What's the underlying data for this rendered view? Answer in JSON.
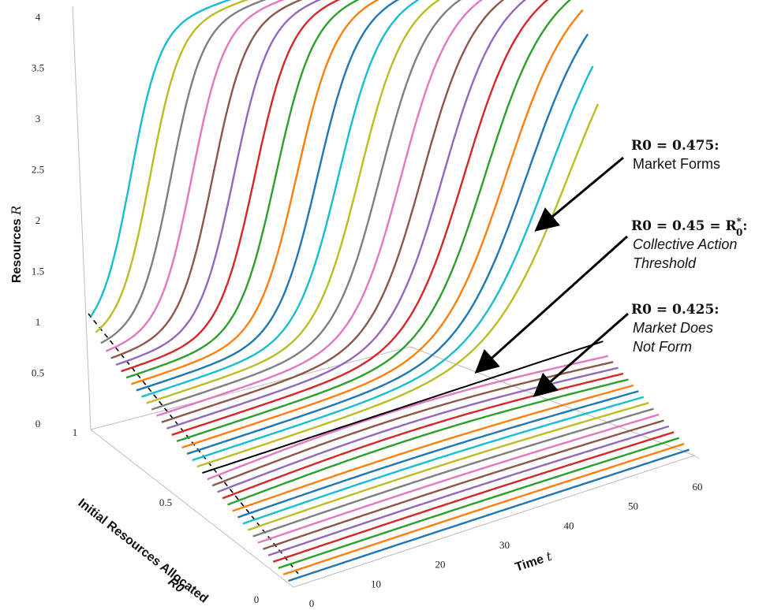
{
  "chart_data": {
    "type": "line",
    "projection": "3d",
    "axes": {
      "x": {
        "label": "Time",
        "symbol": "t",
        "range": [
          0,
          60
        ],
        "ticks": [
          "0",
          "10",
          "20",
          "30",
          "40",
          "50",
          "60"
        ]
      },
      "y": {
        "label": "Initial Resources Allocated",
        "symbol": "R0",
        "range": [
          0,
          1
        ],
        "ticks": [
          "0",
          "0.5",
          "1"
        ]
      },
      "z": {
        "label": "Resources",
        "symbol": "R",
        "range": [
          0,
          4
        ],
        "ticks": [
          "0",
          "0.5",
          "1",
          "1.5",
          "2",
          "2.5",
          "3",
          "3.5",
          "4"
        ]
      }
    },
    "grid": false,
    "r0_step": 0.025,
    "collective_action_threshold": 0.45,
    "saturation_level": 4,
    "series_colors": [
      "#1f77b4",
      "#ff7f0e",
      "#2ca02c",
      "#d62728",
      "#9467bd",
      "#8c564b",
      "#e377c2",
      "#7f7f7f",
      "#bcbd22",
      "#17becf"
    ],
    "annotations": [
      {
        "id": "market-forms",
        "r0": 0.475,
        "title": "R0 = 0.475:",
        "lines": [
          "Market Forms"
        ],
        "italic": false
      },
      {
        "id": "threshold",
        "r0": 0.45,
        "title": "R0 = 0.45 = R",
        "title_sup": "*",
        "title_sub": "0",
        "title_end": ":",
        "lines": [
          "Collective Action",
          "Threshold"
        ],
        "italic": true
      },
      {
        "id": "no-market",
        "r0": 0.425,
        "title": "R0 = 0.425:",
        "lines": [
          "Market Does",
          "Not Form"
        ],
        "italic": true
      }
    ]
  }
}
